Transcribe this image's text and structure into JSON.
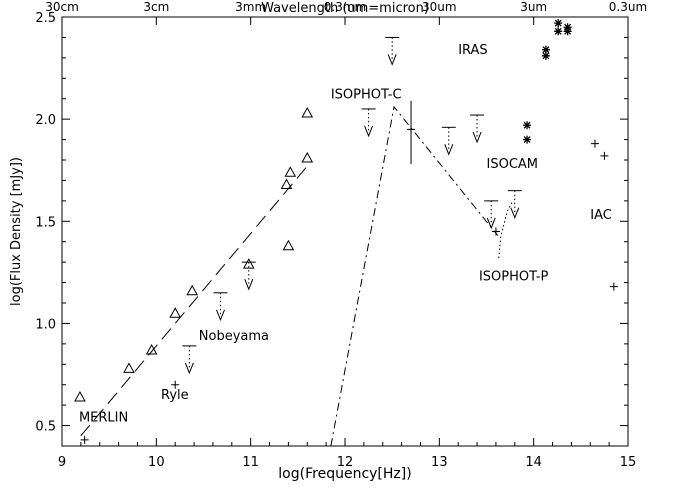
{
  "chart_data": {
    "type": "scatter",
    "title": "",
    "xlabel": "log(Frequency[Hz])",
    "ylabel": "log(Flux Density [mJy])",
    "top_axis_label": "Wavelength (um=micron)",
    "xlim": [
      9,
      15
    ],
    "ylim": [
      0.4,
      2.5
    ],
    "grid": false,
    "x_ticks": [
      {
        "value": 9,
        "label": "9"
      },
      {
        "value": 10,
        "label": "10"
      },
      {
        "value": 11,
        "label": "11"
      },
      {
        "value": 12,
        "label": "12"
      },
      {
        "value": 13,
        "label": "13"
      },
      {
        "value": 14,
        "label": "14"
      },
      {
        "value": 15,
        "label": "15"
      }
    ],
    "y_ticks": [
      {
        "value": 0.5,
        "label": "0.5"
      },
      {
        "value": 1.0,
        "label": "1.0"
      },
      {
        "value": 1.5,
        "label": "1.5"
      },
      {
        "value": 2.0,
        "label": "2.0"
      },
      {
        "value": 2.5,
        "label": "2.5"
      }
    ],
    "top_ticks": [
      {
        "value": 9.0,
        "label": "30cm"
      },
      {
        "value": 10.0,
        "label": "3cm"
      },
      {
        "value": 11.0,
        "label": "3mm"
      },
      {
        "value": 12.0,
        "label": "0.3mm"
      },
      {
        "value": 13.0,
        "label": "30um"
      },
      {
        "value": 14.0,
        "label": "3um"
      },
      {
        "value": 15.0,
        "label": "0.3um"
      }
    ],
    "series": [
      {
        "marker": "triangle",
        "points": [
          {
            "x": 9.19,
            "y": 0.64
          },
          {
            "x": 9.71,
            "y": 0.78
          },
          {
            "x": 9.95,
            "y": 0.87
          },
          {
            "x": 10.2,
            "y": 1.05
          },
          {
            "x": 10.38,
            "y": 1.16
          },
          {
            "x": 10.98,
            "y": 1.29
          },
          {
            "x": 11.38,
            "y": 1.68
          },
          {
            "x": 11.42,
            "y": 1.74
          },
          {
            "x": 11.6,
            "y": 1.81
          },
          {
            "x": 11.6,
            "y": 2.03
          },
          {
            "x": 11.4,
            "y": 1.38
          }
        ]
      },
      {
        "marker": "plus",
        "points": [
          {
            "x": 9.24,
            "y": 0.43
          },
          {
            "x": 10.2,
            "y": 0.7
          },
          {
            "x": 12.7,
            "y": 1.95
          },
          {
            "x": 13.6,
            "y": 1.45
          },
          {
            "x": 14.65,
            "y": 1.88
          },
          {
            "x": 14.75,
            "y": 1.82
          },
          {
            "x": 14.85,
            "y": 1.18
          }
        ]
      },
      {
        "marker": "asterisk",
        "points": [
          {
            "x": 13.93,
            "y": 1.97
          },
          {
            "x": 13.93,
            "y": 1.9
          },
          {
            "x": 14.13,
            "y": 2.34
          },
          {
            "x": 14.13,
            "y": 2.31
          },
          {
            "x": 14.26,
            "y": 2.47
          },
          {
            "x": 14.26,
            "y": 2.43
          },
          {
            "x": 14.36,
            "y": 2.45
          },
          {
            "x": 14.36,
            "y": 2.43
          }
        ]
      },
      {
        "marker": "upper_limit",
        "points": [
          {
            "x": 12.5,
            "y": 2.4
          },
          {
            "x": 12.25,
            "y": 2.05
          },
          {
            "x": 13.1,
            "y": 1.96
          },
          {
            "x": 13.4,
            "y": 2.02
          },
          {
            "x": 10.35,
            "y": 0.89
          },
          {
            "x": 10.68,
            "y": 1.15
          },
          {
            "x": 10.98,
            "y": 1.3
          },
          {
            "x": 13.55,
            "y": 1.6
          },
          {
            "x": 13.8,
            "y": 1.65
          }
        ]
      }
    ],
    "error_bar": {
      "x": 12.7,
      "y_low": 1.78,
      "y_high": 2.09
    },
    "lines": [
      {
        "style": "dashed",
        "points": [
          [
            9.2,
            0.45
          ],
          [
            11.6,
            1.77
          ]
        ]
      },
      {
        "style": "dash-dot",
        "points": [
          [
            11.85,
            0.4
          ],
          [
            12.52,
            2.06
          ],
          [
            13.62,
            1.43
          ]
        ]
      },
      {
        "style": "dotted",
        "points": [
          [
            13.63,
            1.32
          ],
          [
            13.65,
            1.42
          ],
          [
            13.72,
            1.55
          ],
          [
            13.78,
            1.6
          ]
        ]
      }
    ],
    "annotations": [
      {
        "text": "IRAS",
        "x": 13.2,
        "y": 2.32
      },
      {
        "text": "ISOPHOT-C",
        "x": 11.85,
        "y": 2.1
      },
      {
        "text": "ISOCAM",
        "x": 13.5,
        "y": 1.76
      },
      {
        "text": "IAC",
        "x": 14.6,
        "y": 1.51
      },
      {
        "text": "ISOPHOT-P",
        "x": 13.42,
        "y": 1.21
      },
      {
        "text": "Nobeyama",
        "x": 10.45,
        "y": 0.92
      },
      {
        "text": "Ryle",
        "x": 10.05,
        "y": 0.63
      },
      {
        "text": "MERLIN",
        "x": 9.18,
        "y": 0.52
      }
    ]
  }
}
